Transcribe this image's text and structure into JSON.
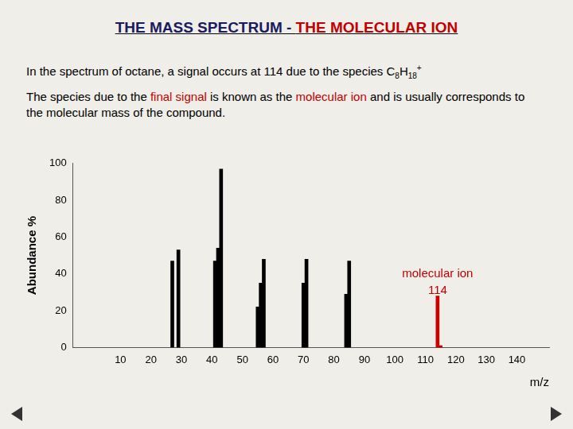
{
  "header": {
    "title_parts": [
      {
        "text": "THE MASS SPECTRUM - ",
        "color": "#1a1a5e"
      },
      {
        "text": "THE MOLECULAR ION",
        "color": "#c00000"
      }
    ]
  },
  "paragraphs": [
    [
      {
        "text": "In the spectrum of octane, a signal occurs at 114 due to the species C"
      },
      {
        "text": "8",
        "style": "sub"
      },
      {
        "text": "H"
      },
      {
        "text": "18",
        "style": "sub"
      },
      {
        "text": "+",
        "style": "sup"
      }
    ],
    [
      {
        "text": "The species due to the "
      },
      {
        "text": "final signal",
        "color": "#c00000"
      },
      {
        "text": " is known as the "
      },
      {
        "text": "molecular ion",
        "color": "#c00000"
      },
      {
        "text": " and is usually corresponds to the molecular mass of the compound."
      }
    ]
  ],
  "chart_data": {
    "type": "bar",
    "x": [
      27,
      29,
      41,
      42,
      43,
      55,
      56,
      57,
      70,
      71,
      84,
      85,
      114,
      115
    ],
    "values": [
      47,
      53,
      47,
      54,
      97,
      22,
      35,
      48,
      35,
      48,
      29,
      47,
      28,
      1
    ],
    "colors": [
      "#000000",
      "#000000",
      "#000000",
      "#000000",
      "#000000",
      "#000000",
      "#000000",
      "#000000",
      "#000000",
      "#000000",
      "#000000",
      "#000000",
      "#cc0000",
      "#cc0000"
    ],
    "xlabel": "m/z",
    "ylabel": "Abundance %",
    "xlim": [
      0,
      145
    ],
    "xticks": [
      10,
      20,
      30,
      40,
      50,
      60,
      70,
      80,
      90,
      100,
      110,
      120,
      130,
      140
    ],
    "ylim": [
      0,
      100
    ],
    "yticks": [
      0,
      20,
      40,
      60,
      80,
      100
    ],
    "grid": false,
    "annotations": [
      {
        "text": "molecular ion",
        "x": 114,
        "y": 40,
        "color": "#c00000"
      },
      {
        "text": "114",
        "x": 114,
        "y": 31,
        "color": "#c00000"
      }
    ]
  }
}
